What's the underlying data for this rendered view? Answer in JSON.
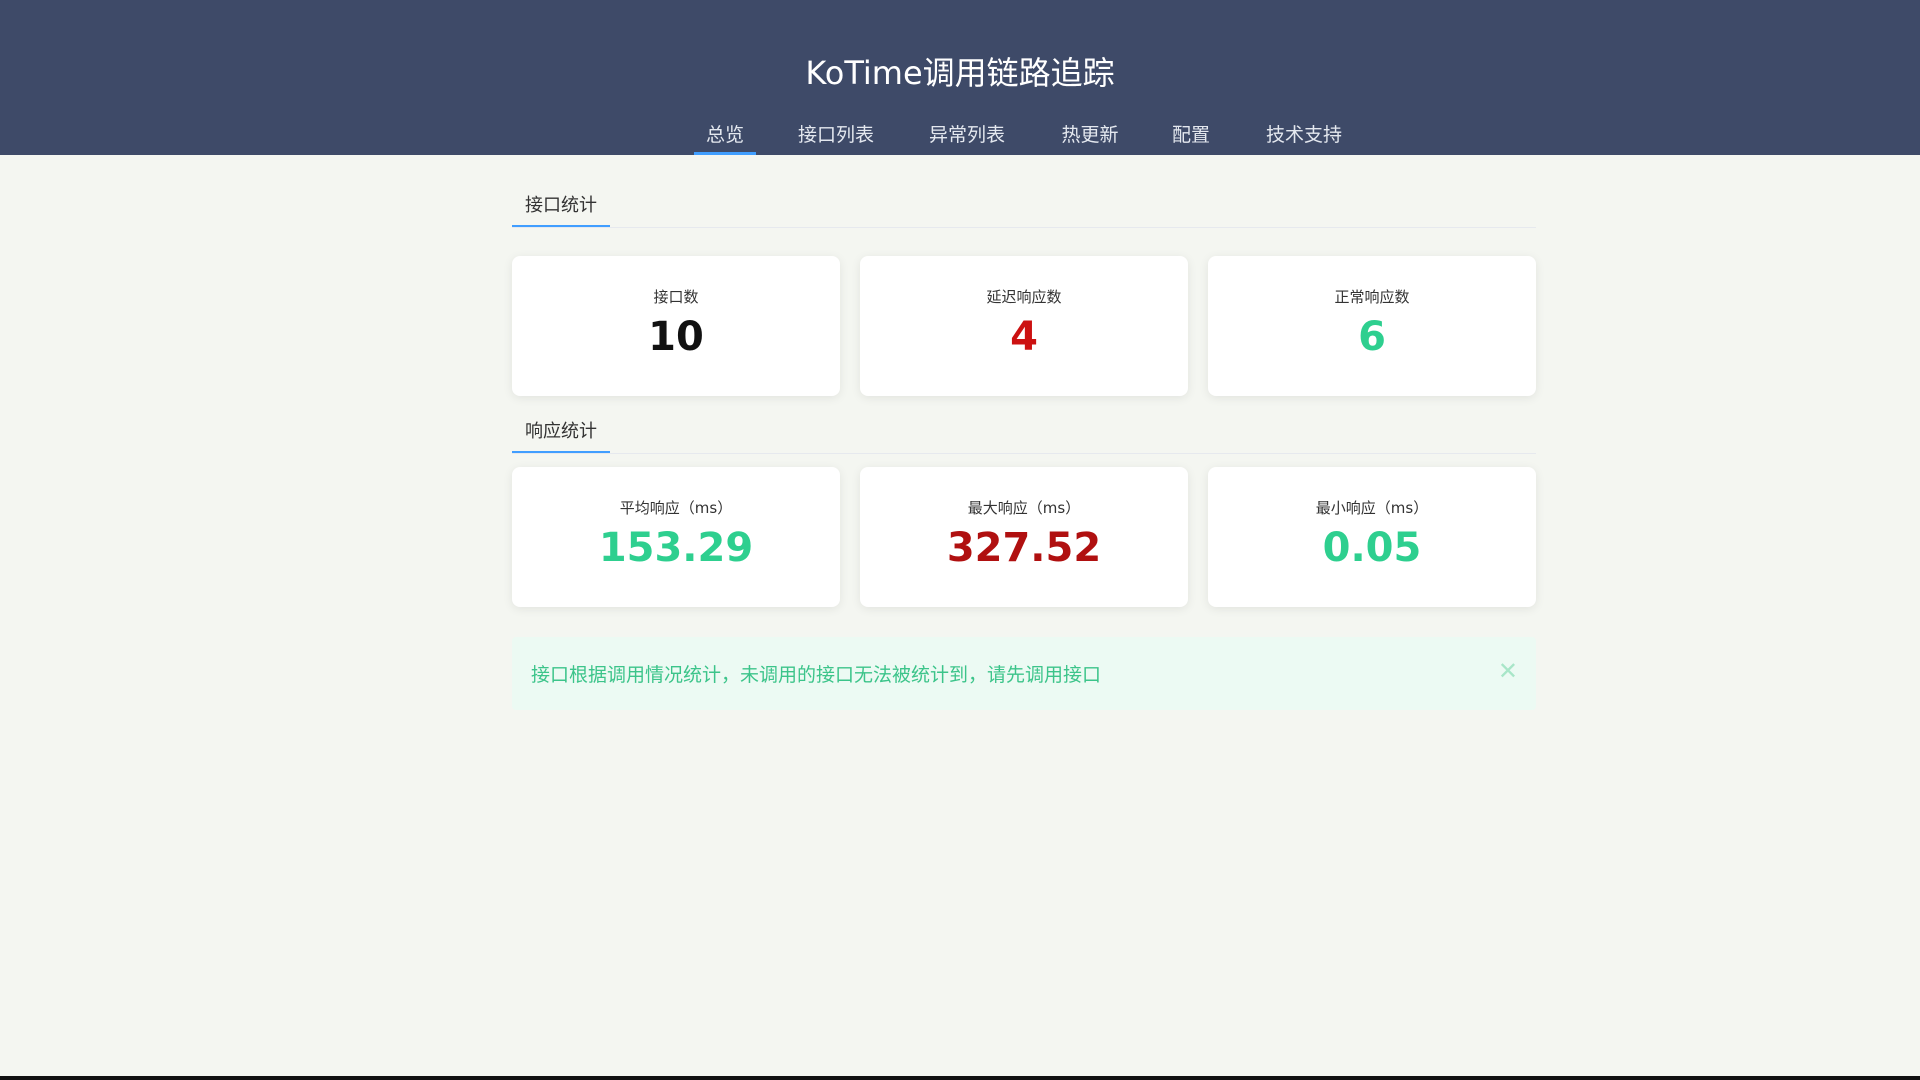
{
  "header": {
    "title": "KoTime调用链路追踪"
  },
  "nav": {
    "items": [
      {
        "label": "总览",
        "active": true
      },
      {
        "label": "接口列表"
      },
      {
        "label": "异常列表"
      },
      {
        "label": "热更新"
      },
      {
        "label": "配置"
      },
      {
        "label": "技术支持"
      }
    ]
  },
  "interface_stats": {
    "title": "接口统计",
    "cards": [
      {
        "label": "接口数",
        "value": "10",
        "color": "#111111"
      },
      {
        "label": "延迟响应数",
        "value": "4",
        "color": "#cc1111"
      },
      {
        "label": "正常响应数",
        "value": "6",
        "color": "#2ecf8f"
      }
    ]
  },
  "response_stats": {
    "title": "响应统计",
    "cards": [
      {
        "label": "平均响应（ms）",
        "value": "153.29",
        "color": "#2ecf8f"
      },
      {
        "label": "最大响应（ms）",
        "value": "327.52",
        "color": "#b01010"
      },
      {
        "label": "最小响应（ms）",
        "value": "0.05",
        "color": "#2ecf8f"
      }
    ]
  },
  "alert": {
    "message": "接口根据调用情况统计，未调用的接口无法被统计到，请先调用接口",
    "close_icon": "close-icon"
  }
}
